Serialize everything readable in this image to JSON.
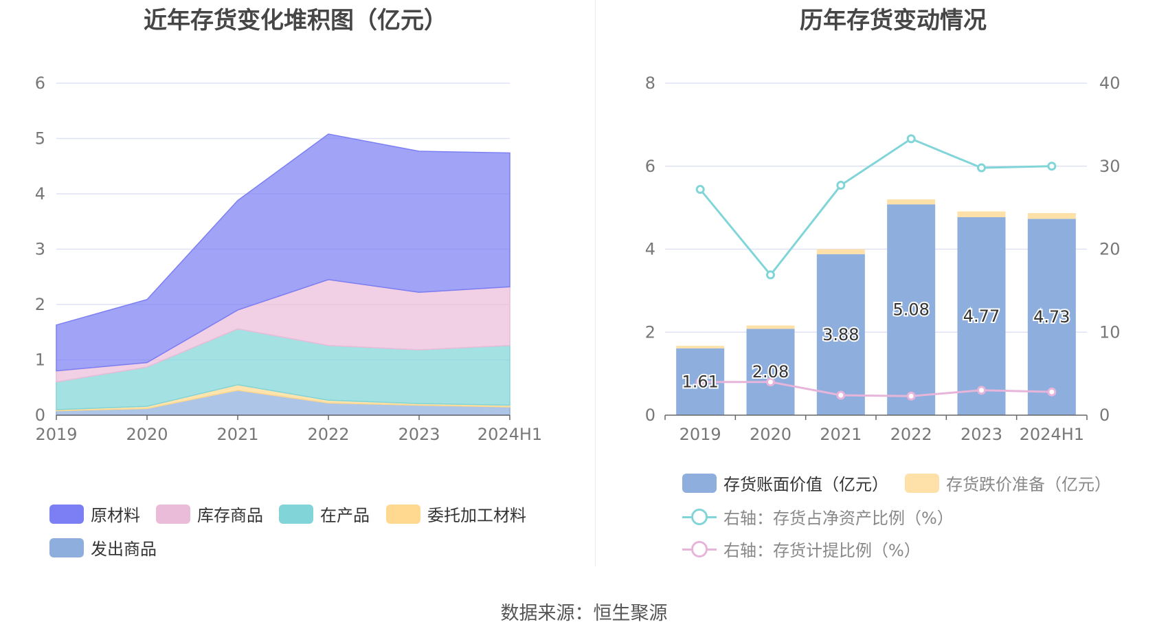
{
  "left_chart": {
    "title": "近年存货变化堆积图（亿元）",
    "chart_data": {
      "type": "area",
      "stacked": true,
      "categories": [
        "2019",
        "2020",
        "2021",
        "2022",
        "2023",
        "2024H1"
      ],
      "ylim": [
        0,
        6
      ],
      "yticks": [
        "0",
        "1",
        "2",
        "3",
        "4",
        "5",
        "6"
      ],
      "grid": true,
      "legend_position": "bottom",
      "series": [
        {
          "name": "发出商品",
          "color": "#8eaedd",
          "values": [
            0.08,
            0.12,
            0.45,
            0.22,
            0.18,
            0.15
          ]
        },
        {
          "name": "委托加工材料",
          "color": "#ffd98f",
          "values": [
            0.02,
            0.04,
            0.1,
            0.05,
            0.03,
            0.03
          ]
        },
        {
          "name": "在产品",
          "color": "#81d5d8",
          "values": [
            0.5,
            0.71,
            1.01,
            0.99,
            0.97,
            1.08
          ]
        },
        {
          "name": "库存商品",
          "color": "#ebbcd9",
          "values": [
            0.2,
            0.08,
            0.34,
            1.19,
            1.04,
            1.06
          ]
        },
        {
          "name": "原材料",
          "color": "#7c7ff3",
          "values": [
            0.83,
            1.14,
            1.98,
            2.63,
            2.55,
            2.42
          ]
        }
      ]
    },
    "legend": [
      {
        "label": "原材料",
        "color": "#7c7ff3"
      },
      {
        "label": "库存商品",
        "color": "#ebbcd9"
      },
      {
        "label": "在产品",
        "color": "#81d5d8"
      },
      {
        "label": "委托加工材料",
        "color": "#ffd98f"
      },
      {
        "label": "发出商品",
        "color": "#8eaedd"
      }
    ]
  },
  "right_chart": {
    "title": "历年存货变动情况",
    "chart_data": {
      "type": "bar",
      "categories": [
        "2019",
        "2020",
        "2021",
        "2022",
        "2023",
        "2024H1"
      ],
      "ylim_left": [
        0,
        8
      ],
      "yticks_left": [
        "0",
        "2",
        "4",
        "6",
        "8"
      ],
      "ylim_right": [
        0,
        40
      ],
      "yticks_right": [
        "0",
        "10",
        "20",
        "30",
        "40"
      ],
      "grid": true,
      "legend_position": "bottom",
      "bar_series": [
        {
          "name": "存货账面价值（亿元）",
          "color": "#8eaedd",
          "values": [
            1.61,
            2.08,
            3.88,
            5.08,
            4.77,
            4.73
          ],
          "labels": [
            "1.61",
            "2.08",
            "3.88",
            "5.08",
            "4.77",
            "4.73"
          ]
        },
        {
          "name": "存货跌价准备（亿元）",
          "color": "#fde1a8",
          "values": [
            0.06,
            0.08,
            0.12,
            0.12,
            0.14,
            0.14
          ]
        }
      ],
      "line_series": [
        {
          "name": "右轴：存货占净资产比例（%）",
          "color": "#81d5d8",
          "axis": "right",
          "values": [
            27.2,
            16.9,
            27.7,
            33.3,
            29.8,
            30.0
          ]
        },
        {
          "name": "右轴：存货计提比例（%）",
          "color": "#e7b4da",
          "axis": "right",
          "values": [
            4.0,
            4.0,
            2.4,
            2.3,
            3.0,
            2.8
          ]
        }
      ]
    },
    "legend": [
      {
        "label": "存货账面价值（亿元）",
        "color": "#8eaedd"
      },
      {
        "label": "存货跌价准备（亿元）",
        "color": "#fde1a8"
      },
      {
        "label": "右轴：存货占净资产比例（%）",
        "color": "#81d5d8"
      },
      {
        "label": "右轴：存货计提比例（%）",
        "color": "#e7b4da"
      }
    ]
  },
  "footer": {
    "source": "数据来源：恒生聚源"
  }
}
